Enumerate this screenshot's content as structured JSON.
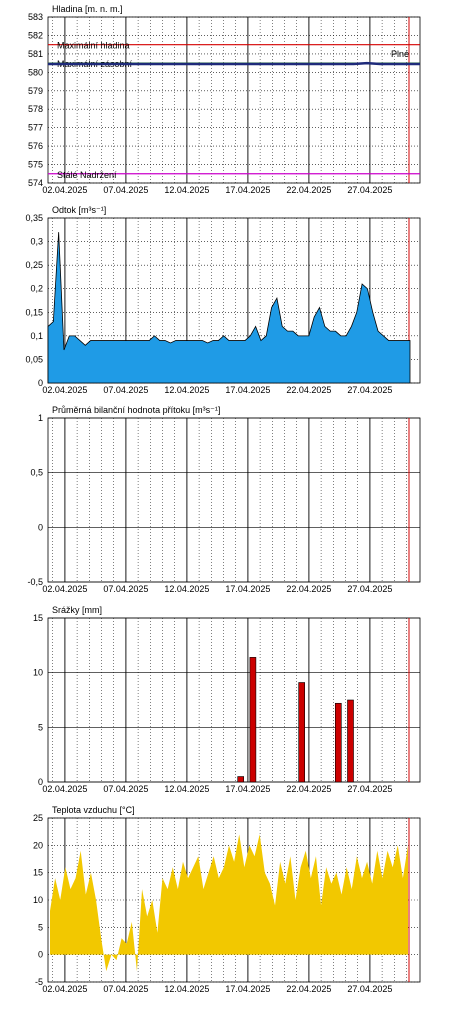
{
  "colors": {
    "grid_major": "#000000",
    "grid_minor": "#000000",
    "red_line": "#d40000",
    "level": "#1e2a7a",
    "flow_fill": "#1f9be6",
    "rain": "#cc0000",
    "temp_fill": "#f2c800",
    "reservoir_max": "#d40000",
    "reservoir_cons": "#1a8a1a",
    "reservoir_low": "#cc00cc",
    "flow_label": "#e0a000"
  },
  "x_axis": {
    "tick_labels": [
      "02.04.2025",
      "07.04.2025",
      "12.04.2025",
      "17.04.2025",
      "22.04.2025",
      "27.04.2025"
    ]
  },
  "chart_data": [
    {
      "type": "line",
      "title": "Hladina [m. n. m.]",
      "y_ticks": [
        "583",
        "582",
        "581",
        "580",
        "579",
        "578",
        "577",
        "576",
        "575",
        "574"
      ],
      "ylim": [
        574,
        583
      ],
      "reference_lines": [
        {
          "label": "Maximální hladina",
          "value": 581.5
        },
        {
          "label": "Maximální zásobní",
          "value": 580.5
        },
        {
          "label": "Stálé Nadržení",
          "value": 574.5
        }
      ],
      "flag_label": "Plné",
      "series": [
        {
          "values": [
            580.45,
            580.45,
            580.45,
            580.45,
            580.45,
            580.45,
            580.45,
            580.45,
            580.45,
            580.45,
            580.45,
            580.45,
            580.45,
            580.45,
            580.45,
            580.45,
            580.45,
            580.45,
            580.45,
            580.45,
            580.45,
            580.45,
            580.45,
            580.45,
            580.5,
            580.45,
            580.45,
            580.45,
            580.45
          ]
        }
      ]
    },
    {
      "type": "area",
      "title": "Odtok [m³s⁻¹]",
      "y_ticks": [
        "0,35",
        "0,3",
        "0,25",
        "0,2",
        "0,15",
        "0,1",
        "0,05",
        "0"
      ],
      "ylim": [
        0,
        0.35
      ],
      "series": [
        {
          "values": [
            0.12,
            0.13,
            0.32,
            0.07,
            0.1,
            0.1,
            0.09,
            0.08,
            0.09,
            0.09,
            0.09,
            0.09,
            0.09,
            0.09,
            0.09,
            0.09,
            0.09,
            0.09,
            0.09,
            0.09,
            0.1,
            0.09,
            0.09,
            0.085,
            0.09,
            0.09,
            0.09,
            0.09,
            0.09,
            0.09,
            0.085,
            0.09,
            0.09,
            0.1,
            0.09,
            0.09,
            0.09,
            0.09,
            0.1,
            0.12,
            0.09,
            0.1,
            0.16,
            0.18,
            0.12,
            0.11,
            0.11,
            0.1,
            0.1,
            0.1,
            0.14,
            0.16,
            0.12,
            0.11,
            0.11,
            0.1,
            0.1,
            0.12,
            0.15,
            0.21,
            0.2,
            0.15,
            0.11,
            0.1,
            0.09,
            0.09,
            0.09,
            0.09,
            0.09
          ]
        }
      ]
    },
    {
      "type": "line",
      "title": "Průměrná bilanční hodnota přítoku   [m³s⁻¹]",
      "y_ticks": [
        "1",
        "0,5",
        "0",
        "-0,5"
      ],
      "ylim": [
        -0.5,
        1
      ],
      "series": []
    },
    {
      "type": "bar",
      "title": "Srážky [mm]",
      "y_ticks": [
        "15",
        "10",
        "5",
        "0"
      ],
      "ylim": [
        0,
        15
      ],
      "x_days": [
        16,
        17,
        21,
        24,
        25
      ],
      "values": [
        0.5,
        11.4,
        9.1,
        7.2,
        7.5
      ]
    },
    {
      "type": "area",
      "title": "Teplota vzduchu [°C]",
      "y_ticks": [
        "25",
        "20",
        "15",
        "10",
        "5",
        "0",
        "-5"
      ],
      "ylim": [
        -5,
        25
      ],
      "series": [
        {
          "values": [
            8,
            14,
            10,
            16,
            12,
            14,
            19,
            11,
            15,
            10,
            3,
            -3,
            0,
            -1,
            3,
            2,
            6,
            -3,
            12,
            7,
            10,
            4,
            14,
            12,
            16,
            12,
            17,
            14,
            16,
            18,
            12,
            15,
            18,
            14,
            16,
            20,
            17,
            22,
            16,
            20,
            18,
            22,
            15,
            13,
            9,
            17,
            13,
            18,
            10,
            16,
            19,
            14,
            18,
            9,
            16,
            13,
            15,
            11,
            16,
            12,
            18,
            14,
            17,
            13,
            19,
            14,
            19,
            16,
            20,
            14,
            20
          ]
        }
      ]
    }
  ]
}
